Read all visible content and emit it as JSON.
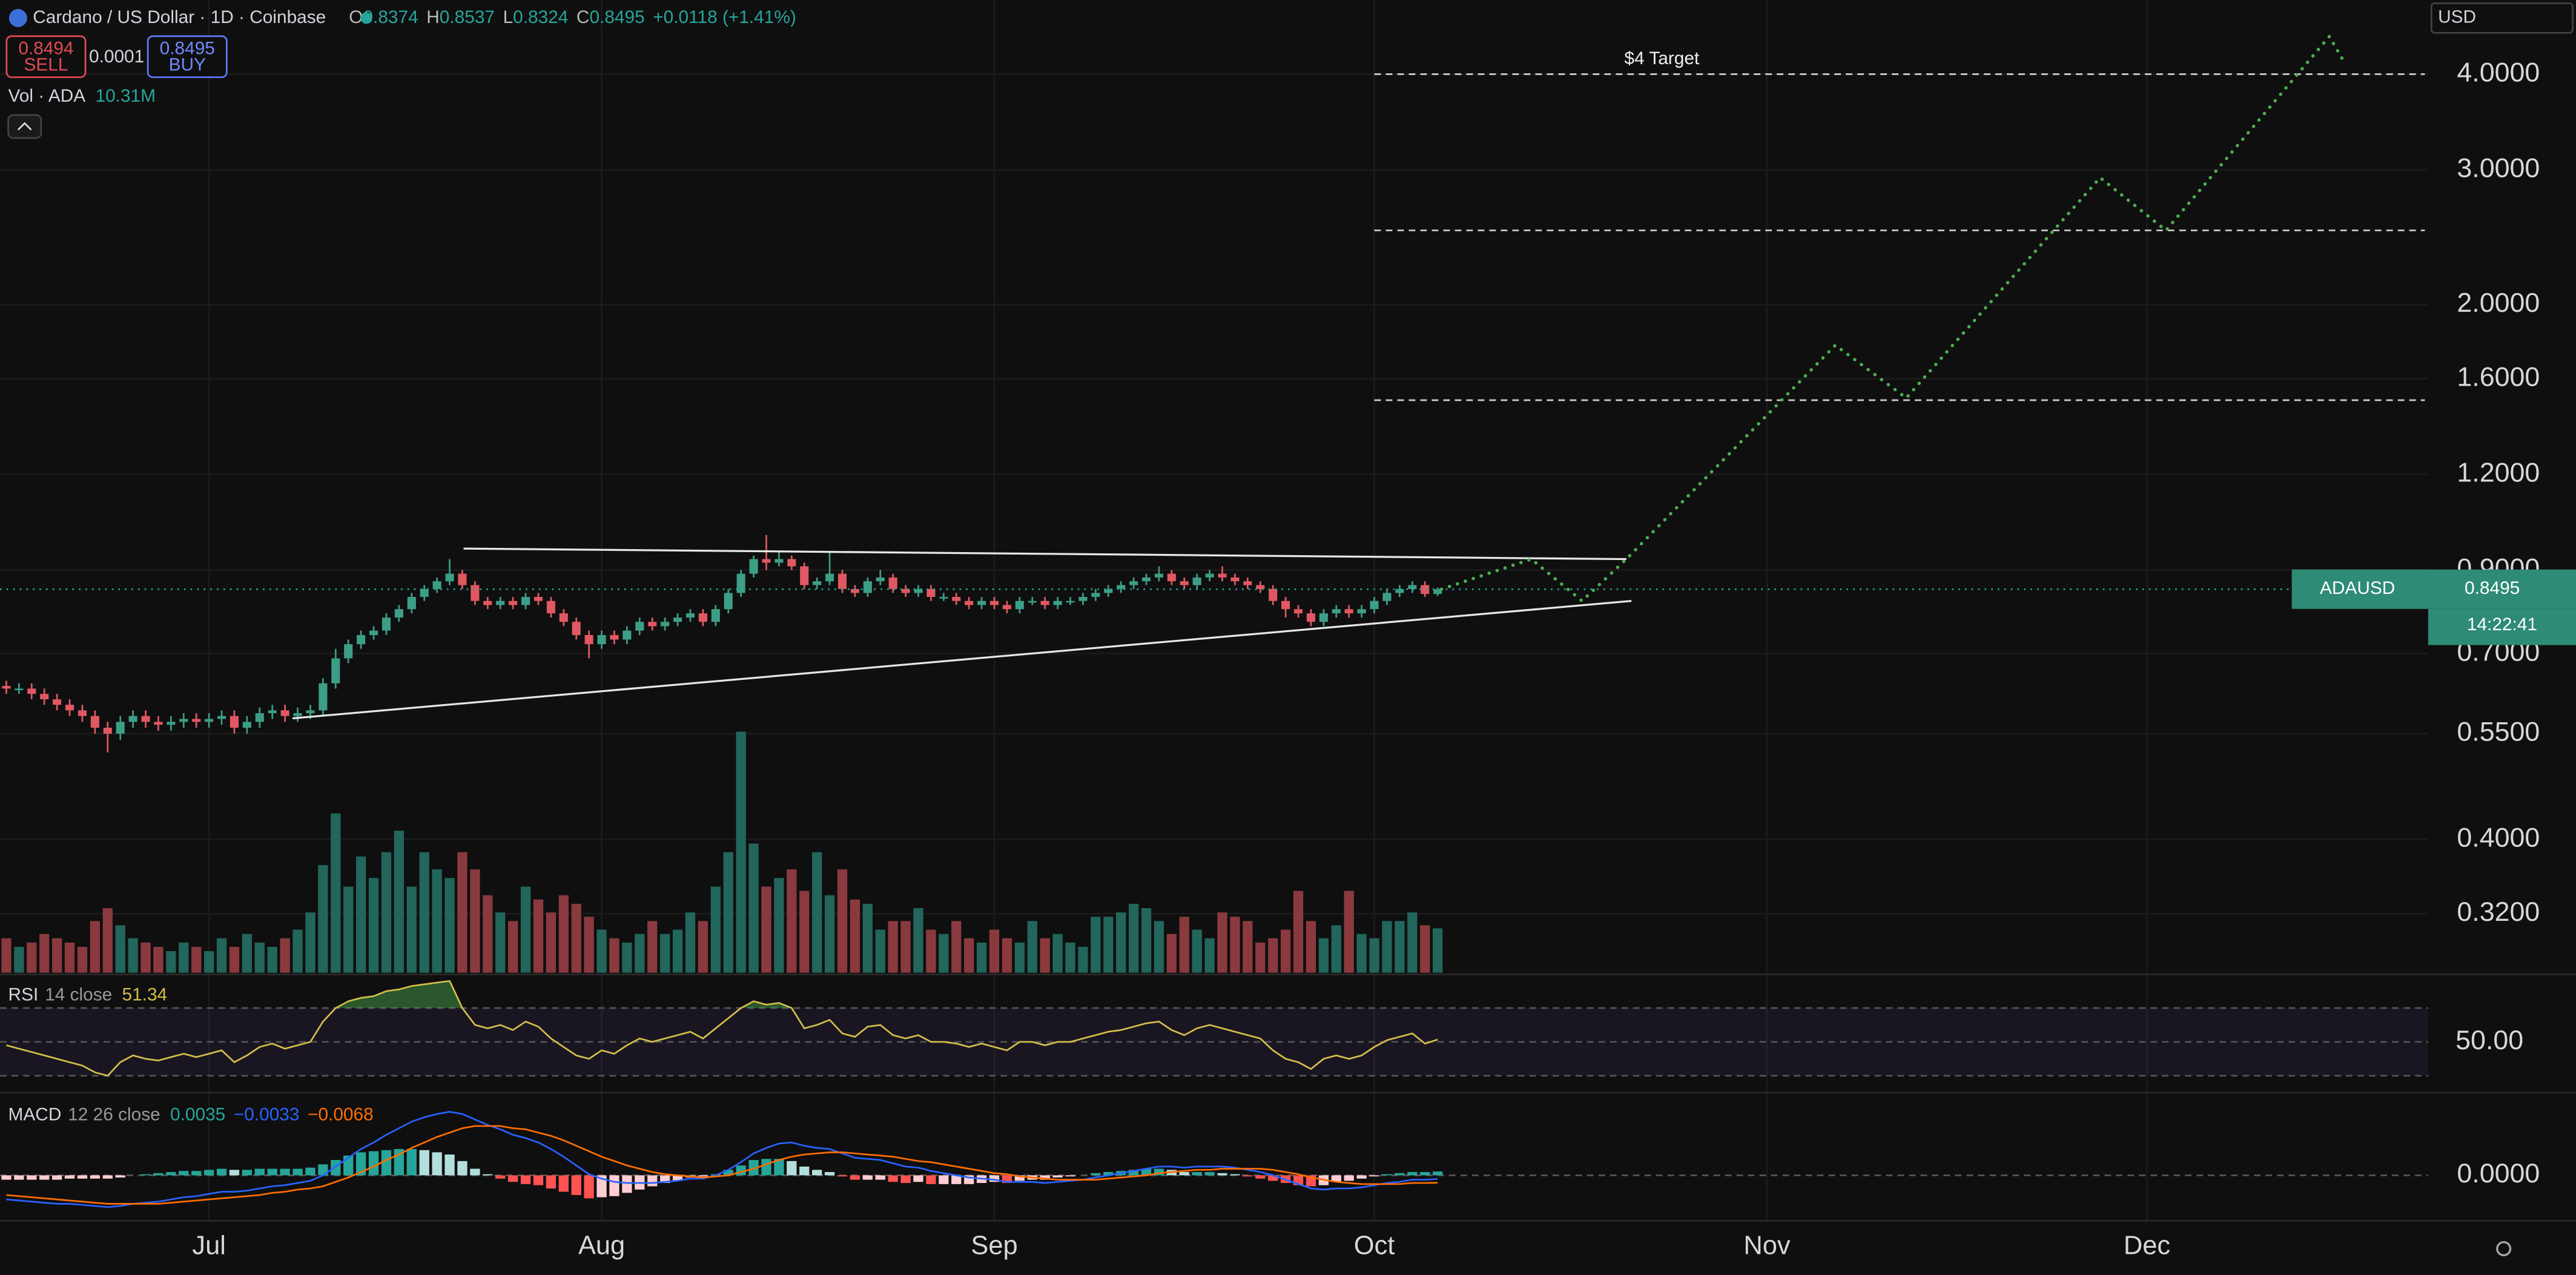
{
  "header": {
    "title": "Cardano / US Dollar · 1D · Coinbase",
    "o_label": "O",
    "o": "0.8374",
    "h_label": "H",
    "h": "0.8537",
    "l_label": "L",
    "l": "0.8324",
    "c_label": "C",
    "c": "0.8495",
    "change": "+0.0118 (+1.41%)",
    "sell_price": "0.8494",
    "sell": "SELL",
    "spread": "0.0001",
    "buy_price": "0.8495",
    "buy": "BUY",
    "currency": "USD"
  },
  "price_tag": {
    "symbol": "ADAUSD",
    "price": "0.8495",
    "countdown": "14:22:41"
  },
  "chart_data": [
    {
      "type": "candlestick",
      "log_scale": true,
      "grid": true,
      "up_color": "#3d9e86",
      "down_color": "#e15862",
      "x": [
        0,
        1,
        2,
        3,
        4,
        5,
        6,
        7,
        8,
        9,
        10,
        11,
        12,
        13,
        14,
        15,
        16,
        17,
        18,
        19,
        20,
        21,
        22,
        23,
        24,
        25,
        26,
        27,
        28,
        29,
        30,
        31,
        32,
        33,
        34,
        35,
        36,
        37,
        38,
        39,
        40,
        41,
        42,
        43,
        44,
        45,
        46,
        47,
        48,
        49,
        50,
        51,
        52,
        53,
        54,
        55,
        56,
        57,
        58,
        59,
        60,
        61,
        62,
        63,
        64,
        65,
        66,
        67,
        68,
        69,
        70,
        71,
        72,
        73,
        74,
        75,
        76,
        77,
        78,
        79,
        80,
        81,
        82,
        83,
        84,
        85,
        86,
        87,
        88,
        89,
        90,
        91,
        92,
        93,
        94,
        95,
        96,
        97,
        98,
        99,
        100,
        101,
        102,
        103,
        104,
        105,
        106,
        107,
        108,
        109,
        110,
        111,
        112,
        113
      ],
      "open": [
        0.635,
        0.63,
        0.63,
        0.62,
        0.61,
        0.6,
        0.59,
        0.58,
        0.56,
        0.55,
        0.57,
        0.58,
        0.57,
        0.565,
        0.57,
        0.575,
        0.57,
        0.575,
        0.58,
        0.56,
        0.57,
        0.585,
        0.59,
        0.58,
        0.585,
        0.59,
        0.64,
        0.69,
        0.72,
        0.74,
        0.75,
        0.78,
        0.8,
        0.83,
        0.85,
        0.87,
        0.89,
        0.86,
        0.82,
        0.81,
        0.82,
        0.81,
        0.83,
        0.82,
        0.79,
        0.77,
        0.74,
        0.72,
        0.74,
        0.73,
        0.75,
        0.77,
        0.76,
        0.77,
        0.78,
        0.79,
        0.77,
        0.8,
        0.84,
        0.89,
        0.93,
        0.92,
        0.93,
        0.91,
        0.86,
        0.87,
        0.89,
        0.85,
        0.84,
        0.87,
        0.88,
        0.85,
        0.84,
        0.85,
        0.83,
        0.83,
        0.82,
        0.81,
        0.82,
        0.81,
        0.8,
        0.82,
        0.82,
        0.81,
        0.82,
        0.82,
        0.83,
        0.84,
        0.85,
        0.86,
        0.87,
        0.88,
        0.89,
        0.87,
        0.86,
        0.88,
        0.89,
        0.88,
        0.87,
        0.86,
        0.85,
        0.82,
        0.8,
        0.79,
        0.77,
        0.79,
        0.8,
        0.79,
        0.8,
        0.82,
        0.84,
        0.85,
        0.86,
        0.8374
      ],
      "high": [
        0.645,
        0.64,
        0.64,
        0.63,
        0.62,
        0.61,
        0.6,
        0.59,
        0.57,
        0.58,
        0.59,
        0.59,
        0.58,
        0.58,
        0.585,
        0.585,
        0.585,
        0.59,
        0.59,
        0.58,
        0.595,
        0.6,
        0.6,
        0.595,
        0.6,
        0.65,
        0.71,
        0.73,
        0.75,
        0.76,
        0.79,
        0.81,
        0.84,
        0.86,
        0.88,
        0.93,
        0.9,
        0.87,
        0.83,
        0.83,
        0.83,
        0.84,
        0.84,
        0.83,
        0.8,
        0.78,
        0.75,
        0.75,
        0.75,
        0.76,
        0.78,
        0.78,
        0.78,
        0.79,
        0.8,
        0.8,
        0.81,
        0.85,
        0.9,
        0.94,
        1.0,
        0.95,
        0.94,
        0.92,
        0.88,
        0.95,
        0.9,
        0.86,
        0.88,
        0.9,
        0.89,
        0.86,
        0.86,
        0.86,
        0.84,
        0.84,
        0.83,
        0.83,
        0.83,
        0.82,
        0.83,
        0.83,
        0.83,
        0.83,
        0.83,
        0.84,
        0.85,
        0.86,
        0.87,
        0.88,
        0.89,
        0.91,
        0.9,
        0.88,
        0.89,
        0.9,
        0.91,
        0.89,
        0.88,
        0.87,
        0.86,
        0.83,
        0.81,
        0.8,
        0.8,
        0.81,
        0.81,
        0.81,
        0.83,
        0.85,
        0.86,
        0.87,
        0.87,
        0.8537
      ],
      "low": [
        0.62,
        0.62,
        0.61,
        0.6,
        0.59,
        0.58,
        0.57,
        0.55,
        0.52,
        0.54,
        0.56,
        0.56,
        0.555,
        0.555,
        0.56,
        0.56,
        0.56,
        0.565,
        0.55,
        0.55,
        0.56,
        0.575,
        0.57,
        0.57,
        0.575,
        0.58,
        0.63,
        0.68,
        0.71,
        0.73,
        0.74,
        0.77,
        0.79,
        0.82,
        0.84,
        0.86,
        0.85,
        0.81,
        0.8,
        0.8,
        0.8,
        0.8,
        0.81,
        0.78,
        0.76,
        0.73,
        0.69,
        0.71,
        0.72,
        0.72,
        0.74,
        0.75,
        0.75,
        0.76,
        0.77,
        0.76,
        0.76,
        0.79,
        0.83,
        0.88,
        0.9,
        0.91,
        0.9,
        0.85,
        0.85,
        0.86,
        0.84,
        0.83,
        0.83,
        0.86,
        0.84,
        0.83,
        0.83,
        0.82,
        0.82,
        0.81,
        0.8,
        0.8,
        0.8,
        0.79,
        0.79,
        0.81,
        0.8,
        0.8,
        0.81,
        0.81,
        0.82,
        0.83,
        0.84,
        0.85,
        0.86,
        0.87,
        0.86,
        0.85,
        0.85,
        0.87,
        0.87,
        0.86,
        0.85,
        0.84,
        0.81,
        0.78,
        0.78,
        0.76,
        0.76,
        0.78,
        0.78,
        0.78,
        0.79,
        0.81,
        0.83,
        0.84,
        0.83,
        0.8324
      ],
      "close": [
        0.63,
        0.63,
        0.62,
        0.61,
        0.6,
        0.59,
        0.58,
        0.56,
        0.55,
        0.57,
        0.58,
        0.57,
        0.565,
        0.57,
        0.575,
        0.57,
        0.575,
        0.58,
        0.56,
        0.57,
        0.585,
        0.59,
        0.58,
        0.585,
        0.59,
        0.64,
        0.69,
        0.72,
        0.74,
        0.75,
        0.78,
        0.8,
        0.83,
        0.85,
        0.87,
        0.89,
        0.86,
        0.82,
        0.81,
        0.82,
        0.81,
        0.83,
        0.82,
        0.79,
        0.77,
        0.74,
        0.72,
        0.74,
        0.73,
        0.75,
        0.77,
        0.76,
        0.77,
        0.78,
        0.79,
        0.77,
        0.8,
        0.84,
        0.89,
        0.93,
        0.92,
        0.93,
        0.91,
        0.86,
        0.87,
        0.89,
        0.85,
        0.84,
        0.87,
        0.88,
        0.85,
        0.84,
        0.85,
        0.83,
        0.83,
        0.82,
        0.81,
        0.82,
        0.81,
        0.8,
        0.82,
        0.82,
        0.81,
        0.82,
        0.82,
        0.83,
        0.84,
        0.85,
        0.86,
        0.87,
        0.88,
        0.89,
        0.87,
        0.86,
        0.88,
        0.89,
        0.88,
        0.87,
        0.86,
        0.85,
        0.82,
        0.8,
        0.79,
        0.77,
        0.79,
        0.8,
        0.79,
        0.8,
        0.82,
        0.84,
        0.85,
        0.86,
        0.8374,
        0.8495
      ],
      "ylim": [
        0.268,
        5
      ],
      "yticks": [
        {
          "value": 0.32,
          "label": "0.3200"
        },
        {
          "value": 0.4,
          "label": "0.4000"
        },
        {
          "value": 0.55,
          "label": "0.5500"
        },
        {
          "value": 0.7,
          "label": "0.7000"
        },
        {
          "value": 0.9,
          "label": "0.9000"
        },
        {
          "value": 1.2,
          "label": "1.2000"
        },
        {
          "value": 1.6,
          "label": "1.6000"
        },
        {
          "value": 2,
          "label": "2.0000"
        },
        {
          "value": 3,
          "label": "3.0000"
        },
        {
          "value": 4,
          "label": "4.0000"
        }
      ],
      "xlim": [
        -0.5,
        191.2
      ],
      "xticks": [
        {
          "value": 16,
          "label": "Jul"
        },
        {
          "value": 47,
          "label": "Aug"
        },
        {
          "value": 78,
          "label": "Sep"
        },
        {
          "value": 108,
          "label": "Oct"
        },
        {
          "value": 139,
          "label": "Nov"
        },
        {
          "value": 169,
          "label": "Dec"
        }
      ],
      "trendlines": [
        {
          "x": [
            36.1,
            127.9
          ],
          "y": [
            0.96,
            0.93
          ]
        },
        {
          "x": [
            22.6,
            128.3
          ],
          "y": [
            0.576,
            0.82
          ]
        }
      ],
      "trendline_color": "#e6e6e6",
      "projection": {
        "color": "#4caf50",
        "x": [
          113.3,
          120.4,
          124.4,
          127.9,
          144.4,
          150,
          165.3,
          170.5,
          183.4,
          184.6
        ],
        "y": [
          0.8495,
          0.93,
          0.82,
          0.93,
          1.77,
          1.51,
          2.93,
          2.5,
          4.48,
          4.14
        ]
      },
      "levels": [
        4,
        2.5,
        1.5
      ],
      "levels_from": 108,
      "level_color": "#d0d0d0",
      "annotation": "$4 Target"
    },
    {
      "type": "bar",
      "name": "Vol · ADA",
      "legend_value": "10.31M",
      "up_color": "#22665c",
      "down_color": "#8a3a3e",
      "ylim": [
        0,
        226
      ],
      "values": [
        8,
        6,
        7,
        9,
        8,
        7,
        6,
        12,
        15,
        11,
        8,
        7,
        6,
        5,
        7,
        6,
        5,
        8,
        6,
        9,
        7,
        6,
        8,
        10,
        14,
        25,
        37,
        20,
        27,
        22,
        28,
        33,
        20,
        28,
        24,
        22,
        28,
        24,
        18,
        14,
        12,
        20,
        17,
        14,
        18,
        16,
        13,
        10,
        8,
        7,
        9,
        12,
        9,
        10,
        14,
        12,
        20,
        28,
        56,
        30,
        20,
        22,
        24,
        19,
        28,
        18,
        24,
        17,
        16,
        10,
        12,
        12,
        15,
        10,
        9,
        12,
        8,
        7,
        10,
        8,
        7,
        12,
        8,
        9,
        7,
        6,
        13,
        13,
        14,
        16,
        15,
        12,
        9,
        13,
        10,
        8,
        14,
        13,
        12,
        7,
        8,
        10,
        19,
        12,
        8,
        11,
        19,
        9,
        8,
        12,
        12,
        14,
        11,
        10.31
      ]
    },
    {
      "type": "line",
      "name": "RSI",
      "params": "14 close",
      "color": "#d4bf4a",
      "ylim": [
        21,
        87
      ],
      "yticks": [
        {
          "value": 50,
          "label": "50.00"
        }
      ],
      "band": [
        30,
        70
      ],
      "values": [
        48,
        46,
        44,
        42,
        40,
        38,
        36,
        32,
        30,
        38,
        42,
        40,
        39,
        41,
        43,
        41,
        43,
        45,
        38,
        42,
        47,
        49,
        46,
        48,
        50,
        62,
        70,
        74,
        76,
        77,
        80,
        81,
        83,
        84,
        85,
        86,
        70,
        60,
        58,
        60,
        57,
        62,
        59,
        52,
        47,
        42,
        40,
        45,
        43,
        48,
        52,
        50,
        52,
        54,
        56,
        52,
        58,
        64,
        70,
        74,
        72,
        73,
        70,
        58,
        60,
        63,
        55,
        53,
        59,
        60,
        54,
        52,
        54,
        50,
        50,
        49,
        47,
        49,
        47,
        45,
        50,
        50,
        48,
        50,
        50,
        52,
        54,
        56,
        57,
        59,
        61,
        62,
        57,
        54,
        58,
        60,
        58,
        56,
        54,
        52,
        45,
        40,
        38,
        34,
        40,
        42,
        40,
        42,
        47,
        51,
        53,
        55,
        49,
        51.34
      ]
    },
    {
      "type": "macd",
      "name": "MACD",
      "params": "12 26 close",
      "legend_labels": [
        "0.0035",
        "−0.0033",
        "−0.0068"
      ],
      "macd_color": "#2962ff",
      "signal_color": "#ff6d00",
      "ylim": [
        -0.04,
        0.071
      ],
      "yticks": [
        {
          "value": 0,
          "label": "0.0000"
        }
      ],
      "histogram": [
        -0.004,
        -0.004,
        -0.004,
        -0.004,
        -0.004,
        -0.003,
        -0.003,
        -0.003,
        -0.003,
        -0.002,
        0.0,
        0.001,
        0.002,
        0.003,
        0.004,
        0.004,
        0.005,
        0.006,
        0.005,
        0.005,
        0.006,
        0.006,
        0.006,
        0.006,
        0.007,
        0.01,
        0.014,
        0.018,
        0.021,
        0.022,
        0.023,
        0.024,
        0.024,
        0.023,
        0.021,
        0.019,
        0.013,
        0.006,
        0.001,
        -0.003,
        -0.006,
        -0.008,
        -0.009,
        -0.012,
        -0.015,
        -0.018,
        -0.021,
        -0.02,
        -0.019,
        -0.016,
        -0.013,
        -0.01,
        -0.007,
        -0.005,
        -0.002,
        -0.001,
        0.001,
        0.005,
        0.009,
        0.014,
        0.015,
        0.015,
        0.013,
        0.008,
        0.005,
        0.003,
        -0.001,
        -0.004,
        -0.004,
        -0.004,
        -0.006,
        -0.007,
        -0.006,
        -0.008,
        -0.008,
        -0.008,
        -0.008,
        -0.007,
        -0.006,
        -0.007,
        -0.005,
        -0.004,
        -0.004,
        -0.002,
        -0.001,
        0.0,
        0.002,
        0.003,
        0.004,
        0.005,
        0.006,
        0.006,
        0.005,
        0.003,
        0.003,
        0.003,
        0.002,
        0.001,
        -0.001,
        -0.003,
        -0.005,
        -0.007,
        -0.009,
        -0.01,
        -0.009,
        -0.006,
        -0.005,
        -0.003,
        -0.001,
        0.001,
        0.002,
        0.003,
        0.003,
        0.0035
      ],
      "macd": [
        -0.022,
        -0.023,
        -0.024,
        -0.025,
        -0.026,
        -0.026,
        -0.027,
        -0.028,
        -0.029,
        -0.028,
        -0.026,
        -0.025,
        -0.024,
        -0.022,
        -0.02,
        -0.019,
        -0.017,
        -0.015,
        -0.015,
        -0.014,
        -0.012,
        -0.01,
        -0.009,
        -0.007,
        -0.005,
        0.0,
        0.008,
        0.016,
        0.024,
        0.03,
        0.037,
        0.043,
        0.049,
        0.053,
        0.056,
        0.058,
        0.056,
        0.051,
        0.046,
        0.042,
        0.037,
        0.034,
        0.03,
        0.024,
        0.017,
        0.009,
        0.001,
        -0.003,
        -0.006,
        -0.007,
        -0.007,
        -0.007,
        -0.006,
        -0.005,
        -0.003,
        -0.003,
        0.0,
        0.005,
        0.012,
        0.02,
        0.025,
        0.029,
        0.03,
        0.027,
        0.025,
        0.024,
        0.02,
        0.016,
        0.015,
        0.014,
        0.011,
        0.008,
        0.007,
        0.004,
        0.002,
        0.0,
        -0.002,
        -0.003,
        -0.004,
        -0.006,
        -0.006,
        -0.006,
        -0.007,
        -0.006,
        -0.005,
        -0.004,
        -0.002,
        0.0,
        0.002,
        0.004,
        0.006,
        0.008,
        0.008,
        0.007,
        0.008,
        0.008,
        0.008,
        0.007,
        0.005,
        0.003,
        0.0,
        -0.004,
        -0.008,
        -0.012,
        -0.013,
        -0.012,
        -0.012,
        -0.011,
        -0.009,
        -0.007,
        -0.006,
        -0.004,
        -0.004,
        -0.0033
      ],
      "signal": [
        -0.018,
        -0.019,
        -0.02,
        -0.021,
        -0.022,
        -0.023,
        -0.024,
        -0.025,
        -0.026,
        -0.026,
        -0.026,
        -0.026,
        -0.026,
        -0.025,
        -0.024,
        -0.023,
        -0.022,
        -0.021,
        -0.02,
        -0.019,
        -0.018,
        -0.016,
        -0.015,
        -0.013,
        -0.012,
        -0.01,
        -0.006,
        -0.002,
        0.003,
        0.008,
        0.014,
        0.019,
        0.025,
        0.03,
        0.035,
        0.039,
        0.043,
        0.045,
        0.045,
        0.045,
        0.043,
        0.042,
        0.039,
        0.036,
        0.032,
        0.027,
        0.022,
        0.017,
        0.013,
        0.009,
        0.006,
        0.003,
        0.001,
        0.0,
        -0.001,
        -0.002,
        -0.001,
        0.0,
        0.003,
        0.006,
        0.01,
        0.014,
        0.017,
        0.019,
        0.02,
        0.021,
        0.021,
        0.02,
        0.019,
        0.018,
        0.017,
        0.015,
        0.013,
        0.012,
        0.01,
        0.008,
        0.006,
        0.004,
        0.002,
        0.001,
        -0.001,
        -0.002,
        -0.003,
        -0.004,
        -0.004,
        -0.004,
        -0.004,
        -0.003,
        -0.002,
        -0.001,
        0.0,
        0.002,
        0.003,
        0.004,
        0.005,
        0.005,
        0.006,
        0.006,
        0.006,
        0.006,
        0.005,
        0.003,
        0.001,
        -0.002,
        -0.004,
        -0.006,
        -0.007,
        -0.008,
        -0.008,
        -0.008,
        -0.008,
        -0.007,
        -0.007,
        -0.0068
      ]
    }
  ]
}
